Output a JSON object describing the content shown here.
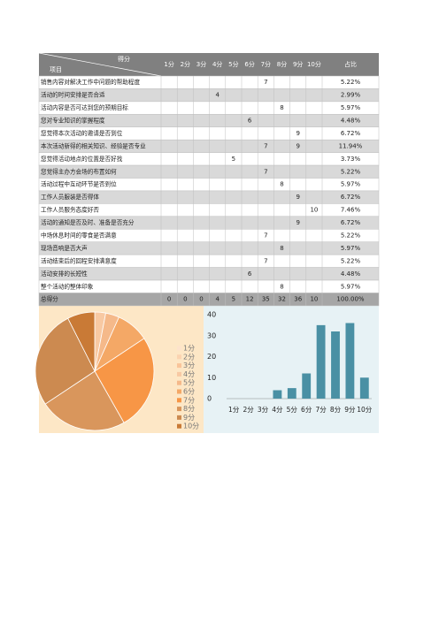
{
  "table": {
    "corner_top": "得分",
    "corner_bottom": "项目",
    "header": [
      "1分",
      "2分",
      "3分",
      "4分",
      "5分",
      "6分",
      "7分",
      "8分",
      "9分",
      "10分",
      "占比"
    ],
    "rows": [
      [
        "销售内容对解决工作中问题的帮助程度",
        null,
        null,
        null,
        null,
        null,
        null,
        7,
        null,
        null,
        null,
        "5.22%"
      ],
      [
        "活动的时间安排是否合适",
        null,
        null,
        null,
        4,
        null,
        null,
        null,
        null,
        null,
        null,
        "2.99%"
      ],
      [
        "活动内容是否可达到您的预期目标",
        null,
        null,
        null,
        null,
        null,
        null,
        null,
        8,
        null,
        null,
        "5.97%"
      ],
      [
        "您对专业知识的掌握程度",
        null,
        null,
        null,
        null,
        null,
        6,
        null,
        null,
        null,
        null,
        "4.48%"
      ],
      [
        "您觉得本次活动的邀请是否到位",
        null,
        null,
        null,
        null,
        null,
        null,
        null,
        null,
        9,
        null,
        "6.72%"
      ],
      [
        "本次活动新得的相关知识、经验是否专业",
        null,
        null,
        null,
        null,
        null,
        null,
        7,
        null,
        9,
        null,
        "11.94%"
      ],
      [
        "您觉得活动地点的位置是否好找",
        null,
        null,
        null,
        null,
        5,
        null,
        null,
        null,
        null,
        null,
        "3.73%"
      ],
      [
        "您觉得主办方会场的布置如何",
        null,
        null,
        null,
        null,
        null,
        null,
        7,
        null,
        null,
        null,
        "5.22%"
      ],
      [
        "活动过程中互动环节是否到位",
        null,
        null,
        null,
        null,
        null,
        null,
        null,
        8,
        null,
        null,
        "5.97%"
      ],
      [
        "工作人员服装是否得体",
        null,
        null,
        null,
        null,
        null,
        null,
        null,
        null,
        9,
        null,
        "6.72%"
      ],
      [
        "工作人员服务态度好否",
        null,
        null,
        null,
        null,
        null,
        null,
        null,
        null,
        null,
        10,
        "7.46%"
      ],
      [
        "活动的通知是否及时、准备是否充分",
        null,
        null,
        null,
        null,
        null,
        null,
        null,
        null,
        9,
        null,
        "6.72%"
      ],
      [
        "中场休息时间的零食是否满意",
        null,
        null,
        null,
        null,
        null,
        null,
        7,
        null,
        null,
        null,
        "5.22%"
      ],
      [
        "现场音响是否大声",
        null,
        null,
        null,
        null,
        null,
        null,
        null,
        8,
        null,
        null,
        "5.97%"
      ],
      [
        "活动结束后的回程安排满意度",
        null,
        null,
        null,
        null,
        null,
        null,
        7,
        null,
        null,
        null,
        "5.22%"
      ],
      [
        "活动安排的长短性",
        null,
        null,
        null,
        null,
        null,
        6,
        null,
        null,
        null,
        null,
        "4.48%"
      ],
      [
        "整个活动的整体印象",
        null,
        null,
        null,
        null,
        null,
        null,
        null,
        8,
        null,
        null,
        "5.97%"
      ],
      [
        "总得分",
        0,
        0,
        0,
        4,
        5,
        12,
        35,
        32,
        36,
        10,
        "100.00%"
      ]
    ]
  },
  "chart_data": [
    {
      "type": "pie",
      "categories": [
        "1分",
        "2分",
        "3分",
        "4分",
        "5分",
        "6分",
        "7分",
        "8分",
        "9分",
        "10分"
      ],
      "values": [
        0,
        0,
        0,
        4,
        5,
        12,
        35,
        32,
        36,
        10
      ],
      "colors": [
        "#fde3cc",
        "#fbd3b0",
        "#f9c49a",
        "#f8c9a3",
        "#f5b98a",
        "#f4a866",
        "#f79646",
        "#d9965c",
        "#cc8a50",
        "#c97a36"
      ]
    },
    {
      "type": "bar",
      "categories": [
        "1分",
        "2分",
        "3分",
        "4分",
        "5分",
        "6分",
        "7分",
        "8分",
        "9分",
        "10分"
      ],
      "values": [
        0,
        0,
        0,
        4,
        5,
        12,
        35,
        32,
        36,
        10
      ],
      "color": "#4a90a4",
      "ylim": [
        0,
        40
      ],
      "yticks": [
        0,
        10,
        20,
        30,
        40
      ]
    }
  ]
}
